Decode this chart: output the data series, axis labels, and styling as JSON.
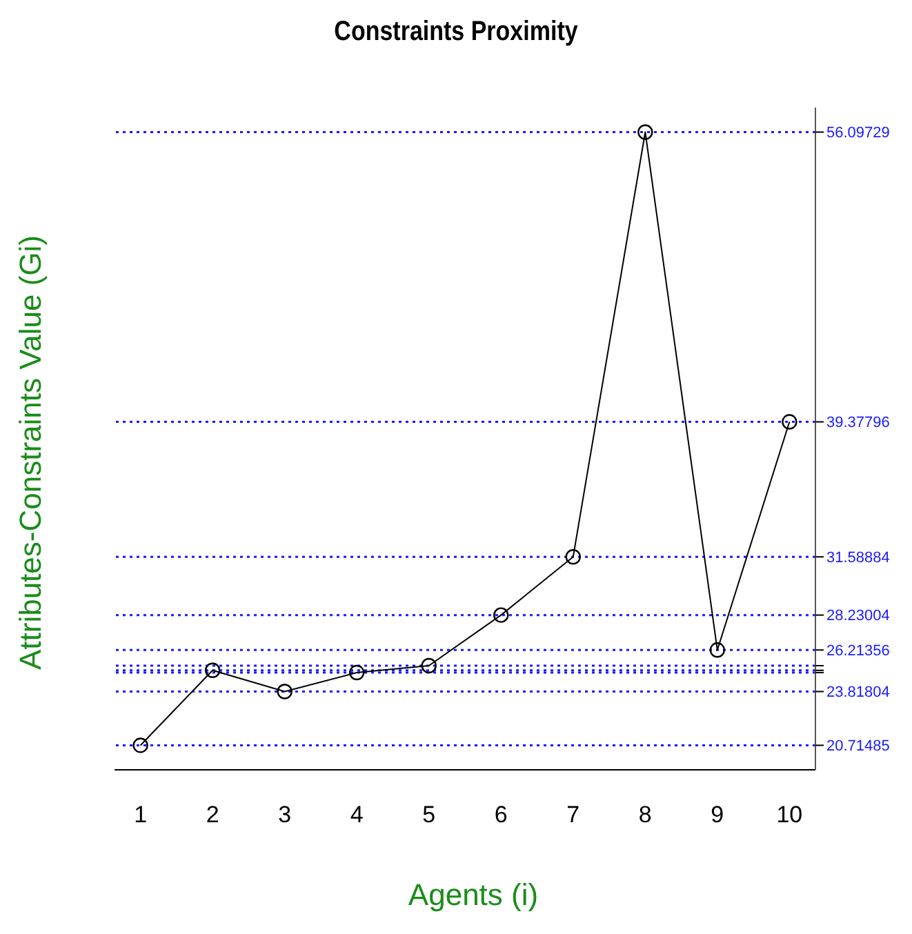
{
  "chart_data": {
    "type": "line",
    "title": "Constraints Proximity",
    "xlabel": "Agents (i)",
    "ylabel": "Attributes-Constraints Value (Gi)",
    "x": [
      1,
      2,
      3,
      4,
      5,
      6,
      7,
      8,
      9,
      10
    ],
    "series": [
      {
        "color": "#000000",
        "values": [
          20.71485,
          25.04,
          23.81804,
          24.91,
          25.31,
          28.23004,
          31.58884,
          56.09729,
          26.21356,
          39.37796
        ]
      }
    ],
    "xlim": [
      0.64,
      10.36
    ],
    "xticks": [
      1,
      2,
      3,
      4,
      5,
      6,
      7,
      8,
      9,
      10
    ],
    "ylim": [
      19.3,
      57.51
    ],
    "yticks": [
      20.71485,
      23.81804,
      {
        "value": 24.91,
        "label": null
      },
      {
        "value": 25.04,
        "label": null
      },
      {
        "value": 25.31,
        "label": null
      },
      26.21356,
      28.23004,
      31.58884,
      39.37796,
      56.09729
    ],
    "grid": "y",
    "marker": "circle",
    "line_style": "solid"
  }
}
